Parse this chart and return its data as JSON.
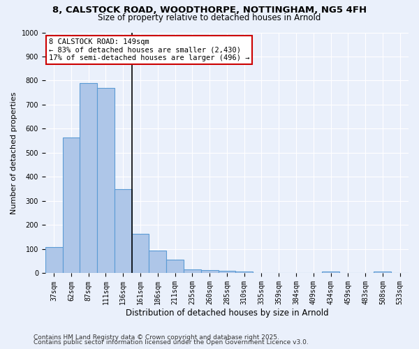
{
  "title1": "8, CALSTOCK ROAD, WOODTHORPE, NOTTINGHAM, NG5 4FH",
  "title2": "Size of property relative to detached houses in Arnold",
  "xlabel": "Distribution of detached houses by size in Arnold",
  "ylabel": "Number of detached properties",
  "categories": [
    "37sqm",
    "62sqm",
    "87sqm",
    "111sqm",
    "136sqm",
    "161sqm",
    "186sqm",
    "211sqm",
    "235sqm",
    "260sqm",
    "285sqm",
    "310sqm",
    "335sqm",
    "359sqm",
    "384sqm",
    "409sqm",
    "434sqm",
    "459sqm",
    "483sqm",
    "508sqm",
    "533sqm"
  ],
  "values": [
    110,
    565,
    790,
    770,
    350,
    165,
    95,
    55,
    15,
    12,
    10,
    8,
    0,
    0,
    0,
    0,
    8,
    0,
    0,
    8,
    0
  ],
  "bar_color": "#aec6e8",
  "bar_edge_color": "#5b9bd5",
  "annotation_box_text": "8 CALSTOCK ROAD: 149sqm\n← 83% of detached houses are smaller (2,430)\n17% of semi-detached houses are larger (496) →",
  "annotation_box_color": "#ffffff",
  "annotation_box_edge_color": "#cc0000",
  "annotation_text_fontsize": 7.5,
  "ylim": [
    0,
    1000
  ],
  "yticks": [
    0,
    100,
    200,
    300,
    400,
    500,
    600,
    700,
    800,
    900,
    1000
  ],
  "background_color": "#eaf0fb",
  "grid_color": "#ffffff",
  "footer1": "Contains HM Land Registry data © Crown copyright and database right 2025.",
  "footer2": "Contains public sector information licensed under the Open Government Licence v3.0.",
  "title1_fontsize": 9.5,
  "title2_fontsize": 8.5,
  "xlabel_fontsize": 8.5,
  "ylabel_fontsize": 8,
  "tick_fontsize": 7,
  "footer_fontsize": 6.5
}
